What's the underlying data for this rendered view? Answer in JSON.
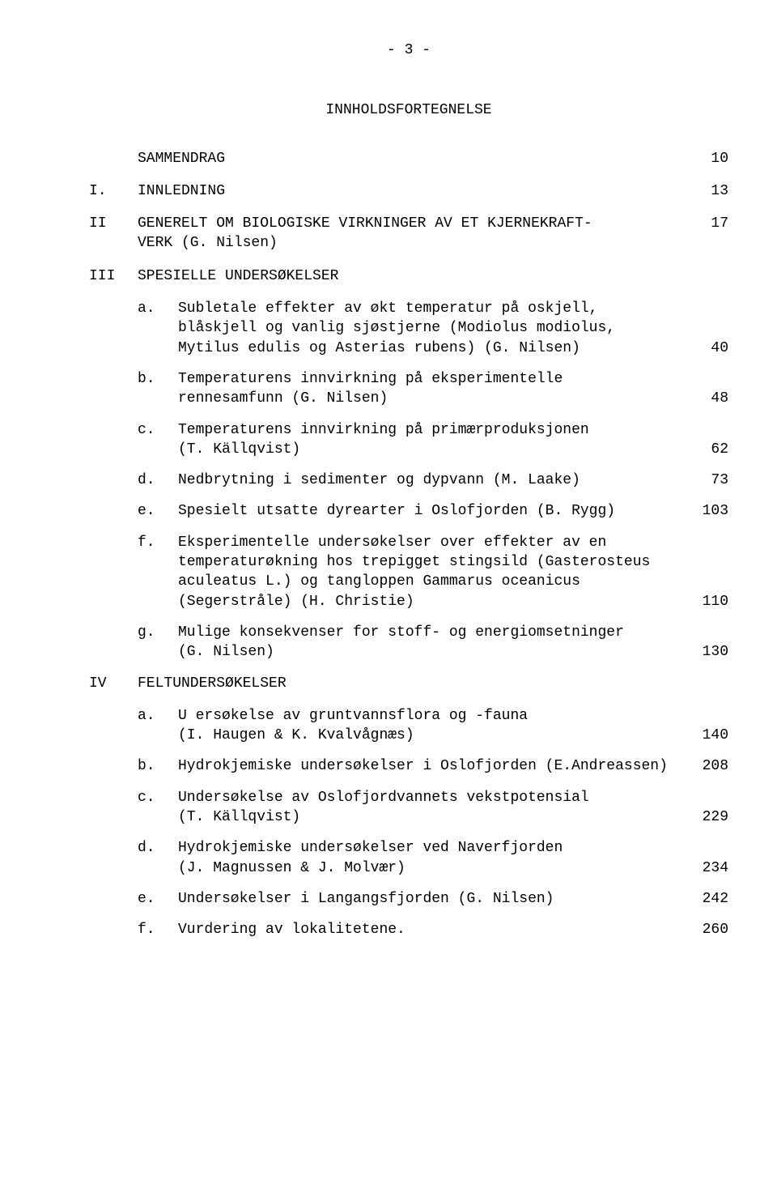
{
  "pageTop": "- 3 -",
  "title": "INNHOLDSFORTEGNELSE",
  "entries": {
    "sammendrag": {
      "label": "",
      "text": "SAMMENDRAG",
      "page": "10"
    },
    "I": {
      "label": "I.",
      "text": "INNLEDNING",
      "page": "13"
    },
    "II": {
      "label": "II",
      "text_l1": "GENERELT OM BIOLOGISKE VIRKNINGER AV ET KJERNEKRAFT-",
      "text_l2": "VERK (G. Nilsen)",
      "page": "17"
    },
    "III": {
      "label": "III",
      "text": "SPESIELLE UNDERSØKELSER",
      "page": ""
    },
    "IIIa": {
      "label": "a.",
      "text_l1": "Subletale effekter av økt temperatur på oskjell,",
      "text_l2": "blåskjell og vanlig sjøstjerne (Modiolus modiolus,",
      "text_l3": "Mytilus edulis og Asterias rubens) (G. Nilsen)",
      "page": "40"
    },
    "IIIb": {
      "label": "b.",
      "text_l1": "Temperaturens innvirkning på eksperimentelle",
      "text_l2": "rennesamfunn (G. Nilsen)",
      "page": "48"
    },
    "IIIc": {
      "label": "c.",
      "text_l1": "Temperaturens innvirkning på primærproduksjonen",
      "text_l2": "(T. Källqvist)",
      "page": "62"
    },
    "IIId": {
      "label": "d.",
      "text": "Nedbrytning i sedimenter og dypvann (M. Laake)",
      "page": "73"
    },
    "IIIe": {
      "label": "e.",
      "text": "Spesielt utsatte dyrearter i Oslofjorden  (B. Rygg)",
      "page": "103"
    },
    "IIIf": {
      "label": "f.",
      "text_l1": "Eksperimentelle undersøkelser over effekter av en",
      "text_l2": "temperaturøkning hos trepigget stingsild (Gasterosteus",
      "text_l3": "aculeatus L.) og tangloppen Gammarus oceanicus",
      "text_l4": "(Segerstråle)  (H. Christie)",
      "page": "110"
    },
    "IIIg": {
      "label": "g.",
      "text_l1": "Mulige konsekvenser for stoff- og energiomsetninger",
      "text_l2": "(G. Nilsen)",
      "page": "130"
    },
    "IV": {
      "label": "IV",
      "text": "FELTUNDERSØKELSER",
      "page": ""
    },
    "IVa": {
      "label": "a.",
      "text_l1": "U   ersøkelse av gruntvannsflora og -fauna",
      "text_l2": "(I. Haugen & K. Kvalvågnæs)",
      "page": "140"
    },
    "IVb": {
      "label": "b.",
      "text": "Hydrokjemiske undersøkelser i Oslofjorden (E.Andreassen)",
      "page": "208"
    },
    "IVc": {
      "label": "c.",
      "text_l1": "Undersøkelse av Oslofjordvannets vekstpotensial",
      "text_l2": "(T. Källqvist)",
      "page": "229"
    },
    "IVd": {
      "label": "d.",
      "text_l1": "Hydrokjemiske undersøkelser ved Naverfjorden",
      "text_l2": "(J. Magnussen & J. Molvær)",
      "page": "234"
    },
    "IVe": {
      "label": "e.",
      "text": "Undersøkelser i Langangsfjorden  (G. Nilsen)",
      "page": "242"
    },
    "IVf": {
      "label": "f.",
      "text": "Vurdering av lokalitetene.",
      "page": "260"
    }
  }
}
